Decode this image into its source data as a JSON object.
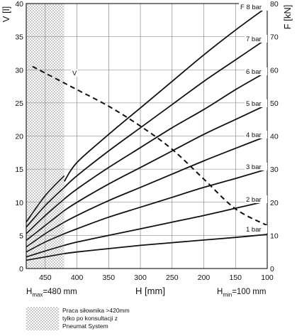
{
  "chart_data": {
    "type": "line",
    "xlabel": "H [mm]",
    "ylabel_left": "V [l]",
    "ylabel_right": "F [kN]",
    "x_reversed": true,
    "xlim": [
      480,
      100
    ],
    "ylim_left": [
      0,
      40
    ],
    "ylim_right": [
      0,
      80
    ],
    "x_ticks": [
      450,
      400,
      350,
      300,
      250,
      200,
      150,
      100
    ],
    "y_left_ticks": [
      0,
      5,
      10,
      15,
      20,
      25,
      30,
      35,
      40
    ],
    "y_right_ticks": [
      0,
      10,
      20,
      30,
      40,
      50,
      60,
      70,
      80
    ],
    "grid": true,
    "shaded_region": {
      "x_from": 480,
      "x_to": 420,
      "pattern": "checkered",
      "color": "#c8c8c8"
    },
    "series": [
      {
        "name": "1 bar",
        "axis": "right",
        "style": "solid",
        "x": [
          480,
          450,
          420,
          400,
          350,
          300,
          250,
          200,
          150,
          100
        ],
        "y": [
          2.5,
          3.5,
          4.5,
          5.0,
          6.0,
          7.0,
          7.8,
          8.6,
          9.4,
          10.3
        ]
      },
      {
        "name": "2 bar",
        "axis": "right",
        "style": "solid",
        "x": [
          480,
          450,
          420,
          400,
          350,
          300,
          250,
          200,
          150,
          100
        ],
        "y": [
          3.5,
          5.3,
          7.0,
          8.0,
          10.0,
          12.0,
          14.0,
          16.0,
          18.2,
          20.4
        ]
      },
      {
        "name": "3 bar",
        "axis": "right",
        "style": "solid",
        "x": [
          480,
          450,
          420,
          400,
          350,
          300,
          250,
          200,
          150,
          100
        ],
        "y": [
          5.0,
          8.0,
          10.5,
          12.0,
          15.5,
          18.5,
          21.5,
          24.5,
          27.2,
          30.0
        ]
      },
      {
        "name": "4 bar",
        "axis": "right",
        "style": "solid",
        "x": [
          480,
          450,
          420,
          400,
          350,
          300,
          250,
          200,
          150,
          100
        ],
        "y": [
          6.5,
          10.5,
          14.0,
          16.0,
          20.5,
          24.5,
          28.5,
          32.5,
          36.3,
          40.0
        ]
      },
      {
        "name": "5 bar",
        "axis": "right",
        "style": "solid",
        "x": [
          480,
          450,
          420,
          400,
          350,
          300,
          250,
          200,
          150,
          100
        ],
        "y": [
          8.5,
          13.0,
          17.5,
          20.0,
          25.5,
          30.5,
          35.5,
          40.5,
          45.0,
          49.5
        ]
      },
      {
        "name": "6 bar",
        "axis": "right",
        "style": "solid",
        "x": [
          480,
          450,
          420,
          400,
          350,
          300,
          250,
          200,
          150,
          100
        ],
        "y": [
          10.5,
          16.0,
          21.0,
          24.0,
          30.5,
          36.5,
          42.5,
          48.0,
          54.0,
          59.5
        ]
      },
      {
        "name": "7 bar",
        "axis": "right",
        "style": "solid",
        "x": [
          480,
          450,
          420,
          400,
          350,
          300,
          250,
          200,
          150,
          100
        ],
        "y": [
          12.5,
          19.0,
          24.5,
          28.0,
          35.5,
          42.5,
          49.5,
          56.5,
          63.0,
          69.5
        ]
      },
      {
        "name": "8 bar",
        "axis": "right",
        "style": "solid",
        "x": [
          480,
          450,
          420,
          400,
          350,
          300,
          250,
          200,
          150,
          100
        ],
        "y": [
          14.0,
          22.0,
          28.0,
          32.0,
          40.5,
          48.5,
          56.5,
          64.5,
          72.0,
          79.0
        ]
      },
      {
        "name": "V",
        "axis": "left",
        "style": "dashed",
        "x": [
          470,
          450,
          420,
          400,
          350,
          300,
          250,
          200,
          150,
          100
        ],
        "y": [
          30.5,
          29.5,
          28.0,
          27.0,
          24.5,
          21.5,
          18.0,
          13.5,
          9.0,
          6.5
        ]
      }
    ],
    "curve_labels": [
      "1 bar",
      "2 bar",
      "3 bar",
      "4 bar",
      "5 bar",
      "6 bar",
      "7 bar",
      "F 8 bar",
      "V"
    ],
    "footer": {
      "hmax_prefix": "H",
      "hmax_sub": "max",
      "hmax_value": "=480 mm",
      "hmin_prefix": "H",
      "hmin_sub": "min",
      "hmin_value": "=100 mm"
    },
    "legend_lines": [
      "Praca siłownika >420mm",
      "tylko po konsultacji z",
      "Pneumat System"
    ]
  }
}
